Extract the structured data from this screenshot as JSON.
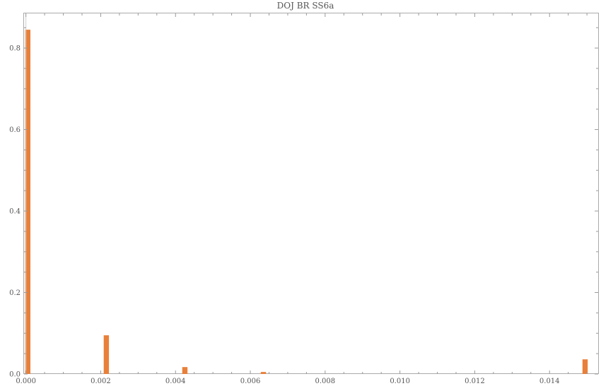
{
  "chart_data": {
    "type": "bar",
    "title": "DOJ BR SS6a",
    "xlabel": "",
    "ylabel": "",
    "xlim": [
      -5e-05,
      0.0153
    ],
    "ylim": [
      0,
      0.885
    ],
    "x_ticks": [
      "0.000",
      "0.002",
      "0.004",
      "0.006",
      "0.008",
      "0.010",
      "0.012",
      "0.014"
    ],
    "x_tick_values": [
      0,
      0.002,
      0.004,
      0.006,
      0.008,
      0.01,
      0.012,
      0.014
    ],
    "y_ticks": [
      "0.0",
      "0.2",
      "0.4",
      "0.6",
      "0.8"
    ],
    "y_tick_values": [
      0,
      0.2,
      0.4,
      0.6,
      0.8
    ],
    "bar_width": 0.00014,
    "bars": [
      {
        "x": 5e-05,
        "value": 0.845
      },
      {
        "x": 0.00215,
        "value": 0.095
      },
      {
        "x": 0.00425,
        "value": 0.017
      },
      {
        "x": 0.00635,
        "value": 0.005
      },
      {
        "x": 0.01495,
        "value": 0.036
      }
    ],
    "bar_color": "#e8803a",
    "grid": false
  }
}
